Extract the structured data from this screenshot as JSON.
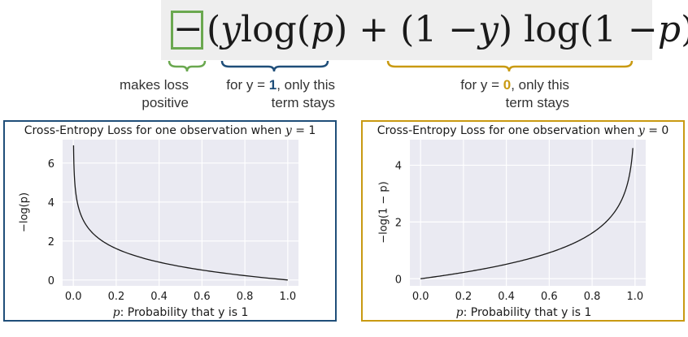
{
  "formula": {
    "minus": "−",
    "open": "(",
    "y1": "y",
    "log1": " log(",
    "p1": "p",
    "close1": ") + (1 − ",
    "y2": "y",
    "log2": ") log(1 − ",
    "p2": "p",
    "close2": "))"
  },
  "annotations": {
    "minus_line1": "makes loss",
    "minus_line2": "positive",
    "term1_pre": "for y = ",
    "term1_value": "1",
    "term1_post": ", only this",
    "term1_line2": "term stays",
    "term2_pre": "for y = ",
    "term2_value": "0",
    "term2_post": ", only this",
    "term2_line2": "term stays"
  },
  "colors": {
    "green": "#6aa84f",
    "blue": "#1f4e79",
    "gold": "#c99a12",
    "plot_bg": "#eaeaf2"
  },
  "chart_data": [
    {
      "type": "line",
      "title_prefix": "Cross-Entropy Loss for one observation when ",
      "title_var": "y",
      "title_suffix": " = 1",
      "xlabel_var": "p",
      "xlabel_rest": ": Probability that y is 1",
      "ylabel": "−log(p)",
      "xlim": [
        -0.05,
        1.05
      ],
      "ylim": [
        -0.3,
        7.2
      ],
      "xticks": [
        "0.0",
        "0.2",
        "0.4",
        "0.6",
        "0.8",
        "1.0"
      ],
      "xtick_values": [
        0.0,
        0.2,
        0.4,
        0.6,
        0.8,
        1.0
      ],
      "yticks": [
        "0",
        "2",
        "4",
        "6"
      ],
      "ytick_values": [
        0,
        2,
        4,
        6
      ],
      "grid": true,
      "function": "-log(p)",
      "x_range": [
        0.001,
        1.0
      ],
      "series": [
        {
          "x": [
            0.001,
            0.01,
            0.02,
            0.05,
            0.1,
            0.2,
            0.3,
            0.4,
            0.5,
            0.6,
            0.7,
            0.8,
            0.9,
            1.0
          ],
          "values": [
            6.91,
            4.61,
            3.91,
            3.0,
            2.3,
            1.61,
            1.2,
            0.92,
            0.69,
            0.51,
            0.36,
            0.22,
            0.11,
            0.0
          ]
        }
      ]
    },
    {
      "type": "line",
      "title_prefix": "Cross-Entropy Loss for one observation when ",
      "title_var": "y",
      "title_suffix": " = 0",
      "xlabel_var": "p",
      "xlabel_rest": ": Probability that y is 1",
      "ylabel": "−log(1 − p)",
      "xlim": [
        -0.05,
        1.05
      ],
      "ylim": [
        -0.25,
        4.9
      ],
      "xticks": [
        "0.0",
        "0.2",
        "0.4",
        "0.6",
        "0.8",
        "1.0"
      ],
      "xtick_values": [
        0.0,
        0.2,
        0.4,
        0.6,
        0.8,
        1.0
      ],
      "yticks": [
        "0",
        "2",
        "4"
      ],
      "ytick_values": [
        0,
        2,
        4
      ],
      "grid": true,
      "function": "-log(1-p)",
      "x_range": [
        0.0,
        0.99
      ],
      "series": [
        {
          "x": [
            0.0,
            0.1,
            0.2,
            0.3,
            0.4,
            0.5,
            0.6,
            0.7,
            0.8,
            0.9,
            0.95,
            0.98,
            0.99
          ],
          "values": [
            0.0,
            0.11,
            0.22,
            0.36,
            0.51,
            0.69,
            0.92,
            1.2,
            1.61,
            2.3,
            3.0,
            3.91,
            4.61
          ]
        }
      ]
    }
  ]
}
